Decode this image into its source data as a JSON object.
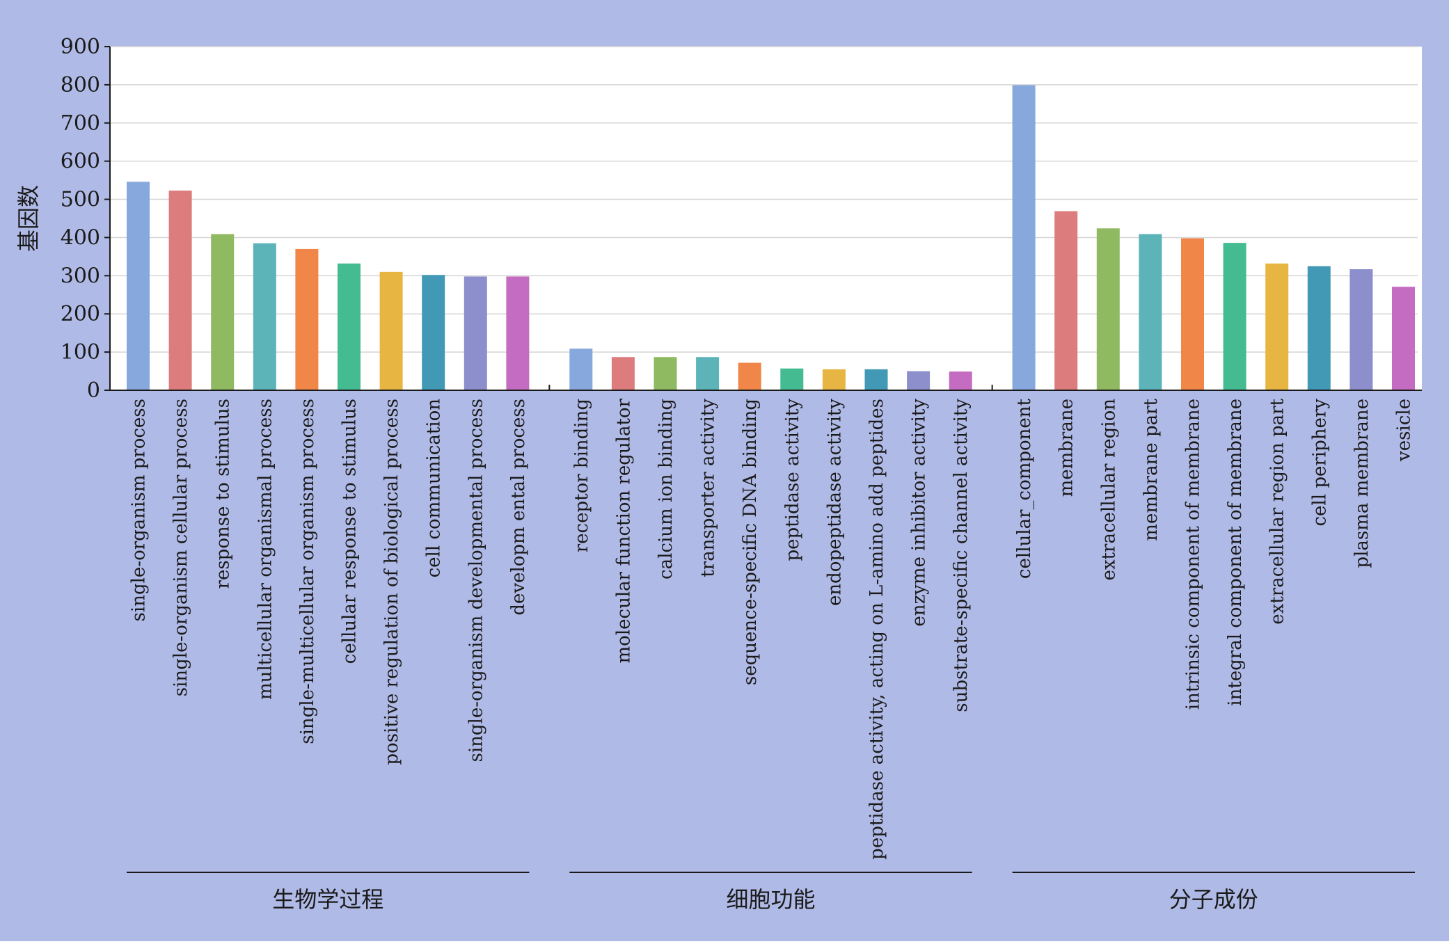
{
  "colors": {
    "background": "#b0bae6",
    "plot_area": "#ffffff",
    "gridline": "#d4d4d4",
    "axis": "#1a1a1a",
    "palette": [
      "#86a8dc",
      "#dd7c7c",
      "#8fba61",
      "#5cb3b8",
      "#f08648",
      "#44bb90",
      "#e7b642",
      "#4199b6",
      "#8c8fcc",
      "#c46cc2"
    ]
  },
  "chart_data": {
    "type": "bar",
    "title": "",
    "xlabel": "",
    "ylabel": "基因数",
    "ylim": [
      0,
      900
    ],
    "yticks": [
      0,
      100,
      200,
      300,
      400,
      500,
      600,
      700,
      800,
      900
    ],
    "grid": true,
    "groups": [
      {
        "name": "生物学过程",
        "categories": [
          "single-organism process",
          "single-organism cellular process",
          "response to stimulus",
          "multicellular organismal process",
          "single-multicellular organism process",
          "cellular response to stimulus",
          "positive regulation of biological process",
          "cell communication",
          "single-organism developmental process",
          "developm ental process"
        ],
        "values": [
          546,
          523,
          409,
          385,
          370,
          332,
          310,
          302,
          298,
          298
        ]
      },
      {
        "name": "细胞功能",
        "categories": [
          "receptor binding",
          "molecular function regulator",
          "calcium ion binding",
          "transporter activity",
          "sequence-specific DNA binding",
          "peptidase activity",
          "endopeptidase activity",
          "peptidase activity, acting on L-amino add peptides",
          "enzyme inhibitor activity",
          "substrate-specific channel activity"
        ],
        "values": [
          109,
          87,
          87,
          87,
          72,
          57,
          55,
          55,
          50,
          49
        ]
      },
      {
        "name": "分子成份",
        "categories": [
          "cellular_component",
          "membrane",
          "extracellular region",
          "membrane part",
          "intrinsic component of membrane",
          "integral component of membrane",
          "extracellular region part",
          "cell periphery",
          "plasma membrane",
          "vesicle"
        ],
        "values": [
          799,
          469,
          424,
          409,
          398,
          386,
          332,
          325,
          317,
          271
        ]
      }
    ]
  }
}
